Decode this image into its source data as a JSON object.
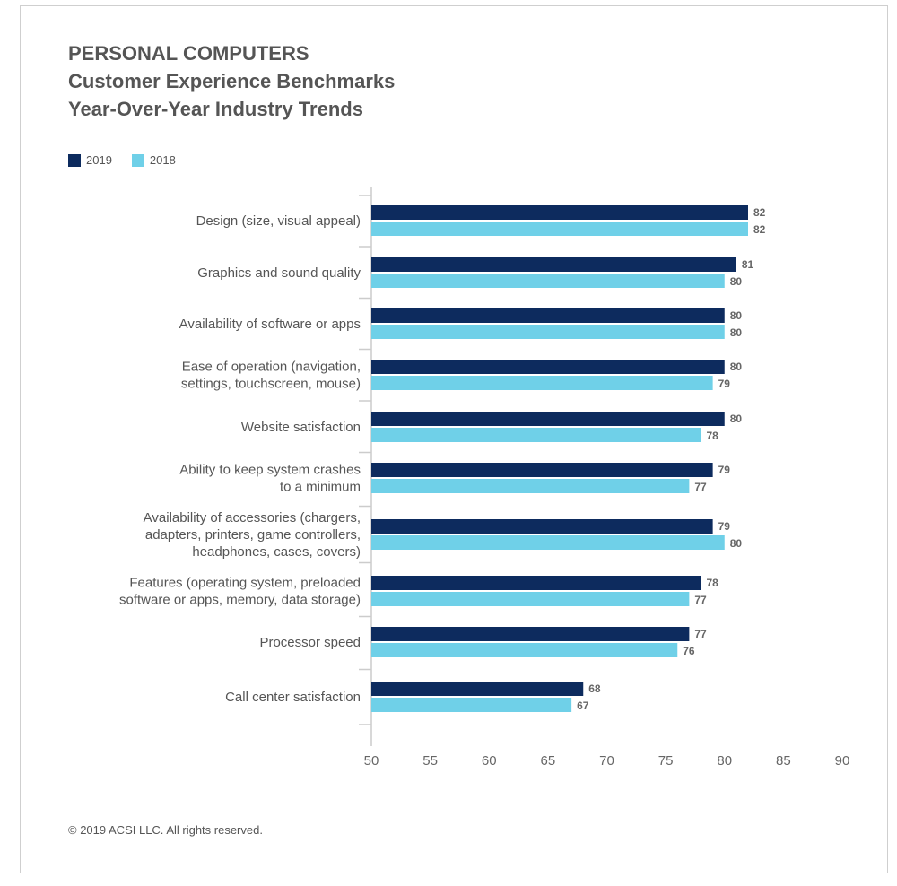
{
  "title_lines": [
    "PERSONAL COMPUTERS",
    "Customer Experience Benchmarks",
    "Year-Over-Year Industry Trends"
  ],
  "footer": "© 2019 ACSI LLC. All rights reserved.",
  "colors": {
    "2019": "#0d2b5e",
    "2018": "#6fd0e8",
    "axis": "#cccccc"
  },
  "chart_data": {
    "type": "bar",
    "orientation": "horizontal",
    "categories": [
      [
        "Design (size, visual appeal)"
      ],
      [
        "Graphics and sound quality"
      ],
      [
        "Availability of software or apps"
      ],
      [
        "Ease of operation (navigation,",
        "settings, touchscreen, mouse)"
      ],
      [
        "Website satisfaction"
      ],
      [
        "Ability to keep system crashes",
        "to a minimum"
      ],
      [
        "Availability of accessories (chargers,",
        "adapters, printers, game controllers,",
        "headphones, cases, covers)"
      ],
      [
        "Features (operating system, preloaded",
        "software or apps, memory, data storage)"
      ],
      [
        "Processor speed"
      ],
      [
        "Call center satisfaction"
      ]
    ],
    "series": [
      {
        "name": "2019",
        "values": [
          82,
          81,
          80,
          80,
          80,
          79,
          79,
          78,
          77,
          68
        ]
      },
      {
        "name": "2018",
        "values": [
          82,
          80,
          80,
          79,
          78,
          77,
          80,
          77,
          76,
          67
        ]
      }
    ],
    "xlim": [
      50,
      90
    ],
    "xticks": [
      50,
      55,
      60,
      65,
      70,
      75,
      80,
      85,
      90
    ],
    "legend": "top-left",
    "grid": false
  }
}
